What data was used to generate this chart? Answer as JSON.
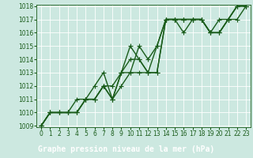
{
  "title": "Graphe pression niveau de la mer (hPa)",
  "ylim": [
    1009,
    1018
  ],
  "xlim": [
    0,
    23
  ],
  "yticks": [
    1009,
    1010,
    1011,
    1012,
    1013,
    1014,
    1015,
    1016,
    1017,
    1018
  ],
  "xticks": [
    0,
    1,
    2,
    3,
    4,
    5,
    6,
    7,
    8,
    9,
    10,
    11,
    12,
    13,
    14,
    15,
    16,
    17,
    18,
    19,
    20,
    21,
    22,
    23
  ],
  "plot_bg": "#cce8e0",
  "label_bg": "#4a7c4a",
  "label_fg": "#ffffff",
  "line_color": "#1a5c1a",
  "series": [
    [
      1009,
      1010,
      1010,
      1010,
      1010,
      1011,
      1011,
      1012,
      1011,
      1012,
      1013,
      1015,
      1014,
      1015,
      1017,
      1017,
      1017,
      1017,
      1017,
      1016,
      1016,
      1017,
      1018,
      1018
    ],
    [
      1009,
      1010,
      1010,
      1010,
      1010,
      1011,
      1011,
      1012,
      1012,
      1013,
      1015,
      1014,
      1013,
      1015,
      1017,
      1017,
      1017,
      1017,
      1017,
      1016,
      1016,
      1017,
      1017,
      1018
    ],
    [
      1009,
      1010,
      1010,
      1010,
      1010,
      1011,
      1011,
      1012,
      1011,
      1013,
      1014,
      1014,
      1013,
      1013,
      1017,
      1017,
      1017,
      1017,
      1017,
      1016,
      1017,
      1017,
      1018,
      1018
    ],
    [
      1009,
      1010,
      1010,
      1010,
      1011,
      1011,
      1012,
      1013,
      1011,
      1013,
      1013,
      1013,
      1013,
      1013,
      1017,
      1017,
      1016,
      1017,
      1017,
      1016,
      1016,
      1017,
      1018,
      1018
    ]
  ],
  "markers": [
    "+",
    "+",
    "+",
    "+"
  ],
  "marker_size": 4,
  "line_width": 1.0,
  "tick_fontsize": 5.5,
  "xlabel_fontsize": 7.0
}
